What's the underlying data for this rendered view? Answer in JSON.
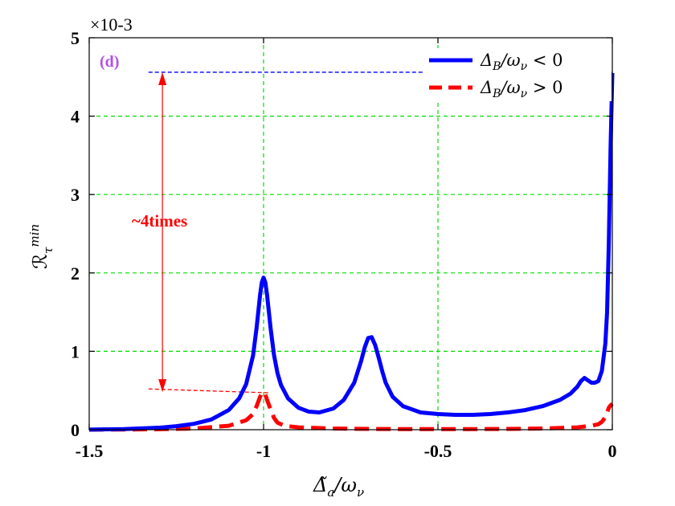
{
  "chart_data": {
    "type": "line",
    "panel_label": "(d)",
    "xlabel": "Δ̃a/ων",
    "ylabel": "ℛτmin",
    "y_multiplier": "×10-3",
    "xlim": [
      -1.5,
      0
    ],
    "ylim": [
      0,
      5
    ],
    "xticks": [
      -1.5,
      -1,
      -0.5,
      0
    ],
    "xtick_labels": [
      "-1.5",
      "-1",
      "-0.5",
      "0"
    ],
    "yticks": [
      0,
      1,
      2,
      3,
      4,
      5
    ],
    "ytick_labels": [
      "0",
      "1",
      "2",
      "3",
      "4",
      "5"
    ],
    "grid": true,
    "legend_position": "top-right",
    "series": [
      {
        "name": "ΔB/ων < 0",
        "legend_main": "Δ",
        "legend_sub1": "B",
        "legend_mid": "/ω",
        "legend_sub2": "ν",
        "legend_rel": " < 0",
        "color": "#0000ff",
        "style": "solid",
        "x": [
          -1.5,
          -1.4,
          -1.3,
          -1.25,
          -1.2,
          -1.15,
          -1.1,
          -1.07,
          -1.05,
          -1.03,
          -1.02,
          -1.01,
          -1.005,
          -1.0,
          -0.995,
          -0.99,
          -0.98,
          -0.97,
          -0.96,
          -0.95,
          -0.93,
          -0.9,
          -0.87,
          -0.84,
          -0.8,
          -0.77,
          -0.74,
          -0.72,
          -0.71,
          -0.7,
          -0.69,
          -0.68,
          -0.67,
          -0.66,
          -0.65,
          -0.63,
          -0.6,
          -0.55,
          -0.5,
          -0.45,
          -0.4,
          -0.35,
          -0.3,
          -0.25,
          -0.2,
          -0.15,
          -0.12,
          -0.1,
          -0.09,
          -0.08,
          -0.07,
          -0.06,
          -0.05,
          -0.04,
          -0.03,
          -0.02,
          -0.015,
          -0.01,
          -0.005,
          0.0
        ],
        "y": [
          0.001,
          0.008,
          0.025,
          0.045,
          0.075,
          0.13,
          0.25,
          0.4,
          0.58,
          0.95,
          1.3,
          1.72,
          1.88,
          1.94,
          1.88,
          1.72,
          1.3,
          0.95,
          0.72,
          0.57,
          0.4,
          0.28,
          0.23,
          0.22,
          0.27,
          0.38,
          0.6,
          0.88,
          1.05,
          1.17,
          1.18,
          1.08,
          0.92,
          0.75,
          0.6,
          0.42,
          0.3,
          0.22,
          0.2,
          0.19,
          0.19,
          0.2,
          0.22,
          0.25,
          0.3,
          0.38,
          0.46,
          0.55,
          0.62,
          0.66,
          0.63,
          0.6,
          0.6,
          0.62,
          0.75,
          1.1,
          1.5,
          2.4,
          3.6,
          4.55
        ]
      },
      {
        "name": "ΔB/ων > 0",
        "legend_main": "Δ",
        "legend_sub1": "B",
        "legend_mid": "/ω",
        "legend_sub2": "ν",
        "legend_rel": " > 0",
        "color": "#ff0000",
        "style": "dashed",
        "x": [
          -1.5,
          -1.4,
          -1.3,
          -1.2,
          -1.1,
          -1.05,
          -1.03,
          -1.02,
          -1.01,
          -1.005,
          -1.0,
          -0.995,
          -0.99,
          -0.98,
          -0.97,
          -0.96,
          -0.94,
          -0.9,
          -0.8,
          -0.7,
          -0.6,
          -0.5,
          -0.4,
          -0.3,
          -0.2,
          -0.1,
          -0.06,
          -0.04,
          -0.03,
          -0.02,
          -0.015,
          -0.01,
          -0.005,
          0.0
        ],
        "y": [
          0.0,
          0.002,
          0.006,
          0.015,
          0.05,
          0.12,
          0.2,
          0.3,
          0.42,
          0.47,
          0.48,
          0.45,
          0.38,
          0.26,
          0.15,
          0.09,
          0.05,
          0.03,
          0.015,
          0.01,
          0.008,
          0.008,
          0.008,
          0.01,
          0.015,
          0.03,
          0.05,
          0.07,
          0.1,
          0.16,
          0.22,
          0.28,
          0.31,
          0.33
        ]
      }
    ],
    "annotation": {
      "text": "~4times",
      "color": "#ff0000",
      "arrow_x": -1.29,
      "arrow_y_top": 4.56,
      "arrow_y_bottom": 0.48,
      "ref_line_top": {
        "x_start": -1.33,
        "x_end": 0.0,
        "y": 4.56,
        "color": "#0000ff"
      },
      "ref_line_bottom": {
        "x_start": -1.33,
        "x_end": -0.98,
        "y_start": 0.52,
        "y_end": 0.47,
        "color": "#ff0000"
      }
    },
    "grid_color": "#00dd00",
    "panel_label_color": "#b44fe8"
  }
}
